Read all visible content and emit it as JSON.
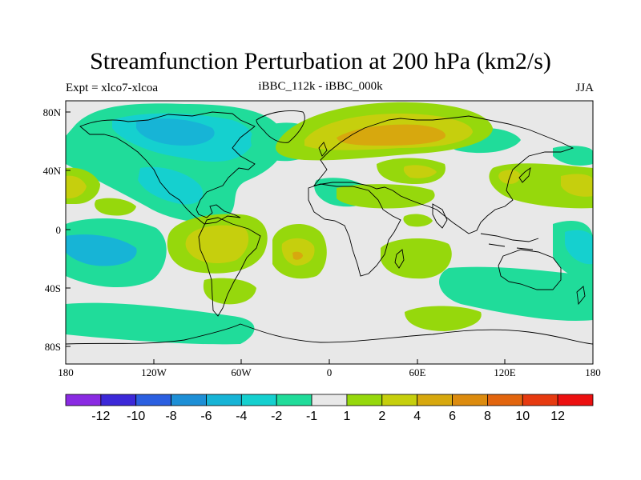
{
  "title": "Streamfunction Perturbation at 200 hPa (km2/s)",
  "subtitle_left": "Expt = xlco7-xlcoa",
  "subtitle_center": "iBBC_112k - iBBC_000k",
  "subtitle_right": "JJA",
  "x_ticks": [
    "180",
    "120W",
    "60W",
    "0",
    "60E",
    "120E",
    "180"
  ],
  "y_ticks": [
    "80N",
    "40N",
    "0",
    "40S",
    "80S"
  ],
  "colorbar": {
    "colors": [
      "#8a2be2",
      "#3c28d8",
      "#2b5fe0",
      "#1d8fd6",
      "#17b4d6",
      "#15d0cf",
      "#20dc9a",
      "#e8e8e8",
      "#96d80c",
      "#c6cf0d",
      "#d7a80e",
      "#dc8b0e",
      "#e2650e",
      "#e63a10",
      "#ec1010"
    ],
    "labels": [
      "-12",
      "-10",
      "-8",
      "-6",
      "-4",
      "-2",
      "-1",
      "1",
      "2",
      "4",
      "6",
      "8",
      "10",
      "12"
    ]
  },
  "palette": {
    "neg_weak": "#20dc9a",
    "neg_mid": "#15d0cf",
    "neg_strong": "#17b4d6",
    "pos_weak": "#96d80c",
    "pos_mid": "#c6cf0d",
    "pos_strong": "#d7a80e",
    "pos_stronger": "#dc8b0e",
    "background": "#e8e8e8"
  },
  "chart_data": {
    "type": "heatmap",
    "title": "Streamfunction Perturbation at 200 hPa (km2/s)",
    "projection": "cylindrical equidistant",
    "xlim": [
      -180,
      180
    ],
    "ylim": [
      -90,
      90
    ],
    "levels": [
      -12,
      -10,
      -8,
      -6,
      -4,
      -2,
      -1,
      1,
      2,
      4,
      6,
      8,
      10,
      12
    ],
    "field_centers": [
      {
        "lon": -110,
        "lat": 70,
        "value": -4
      },
      {
        "lon": -120,
        "lat": 30,
        "value": -4
      },
      {
        "lon": -165,
        "lat": -10,
        "value": -4
      },
      {
        "lon": 175,
        "lat": -10,
        "value": -4
      },
      {
        "lon": 30,
        "lat": 70,
        "value": 6
      },
      {
        "lon": -100,
        "lat": -15,
        "value": 4
      },
      {
        "lon": -20,
        "lat": -20,
        "value": 4
      },
      {
        "lon": 170,
        "lat": 30,
        "value": 4
      },
      {
        "lon": -150,
        "lat": 30,
        "value": 4
      },
      {
        "lon": 50,
        "lat": -40,
        "value": 2
      },
      {
        "lon": 70,
        "lat": -60,
        "value": 2
      }
    ]
  }
}
